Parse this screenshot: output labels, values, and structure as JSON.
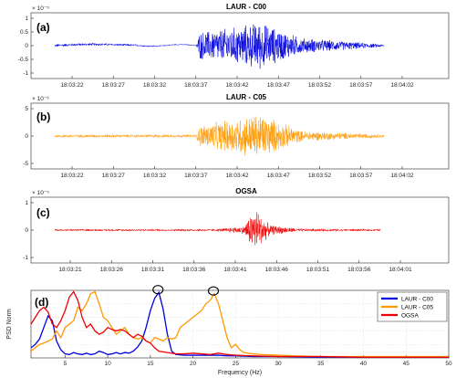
{
  "chart_data": [
    {
      "type": "line",
      "panel_label": "(a)",
      "title": "LAUR - C00",
      "exponent_label": "× 10⁻⁵",
      "color": "#0000dd",
      "ylim": [
        -1,
        1
      ],
      "yticks": [
        "-1",
        "-0.5",
        "0",
        "0.5",
        "1"
      ],
      "x_tick_labels": [
        "18:03:22",
        "18:03:27",
        "18:03:32",
        "18:03:37",
        "18:03:42",
        "18:03:47",
        "18:03:52",
        "18:03:57",
        "18:04:02"
      ],
      "envelope": [
        {
          "t": 0.0,
          "a": 0.06,
          "b": 0.08
        },
        {
          "t": 0.25,
          "a": 0.04,
          "b": 0.02
        },
        {
          "t": 0.35,
          "a": 0.02,
          "b": -0.15
        },
        {
          "t": 0.43,
          "a": 0.02,
          "b": 0.0
        },
        {
          "t": 0.44,
          "a": 0.55,
          "b": 0.0
        },
        {
          "t": 0.56,
          "a": 0.75,
          "b": 0.0
        },
        {
          "t": 0.62,
          "a": 0.95,
          "b": 0.0
        },
        {
          "t": 0.75,
          "a": 0.3,
          "b": 0.0
        },
        {
          "t": 1.0,
          "a": 0.05,
          "b": 0.0
        }
      ]
    },
    {
      "type": "line",
      "panel_label": "(b)",
      "title": "LAUR - C05",
      "exponent_label": "× 10⁻⁶",
      "color": "#ff9900",
      "ylim": [
        -5,
        5
      ],
      "yticks": [
        "-5",
        "0",
        "5"
      ],
      "x_tick_labels": [
        "18:03:22",
        "18:03:27",
        "18:03:32",
        "18:03:37",
        "18:03:42",
        "18:03:47",
        "18:03:52",
        "18:03:57",
        "18:04:02"
      ],
      "envelope": [
        {
          "t": 0.0,
          "a": 0.3,
          "b": 0.0
        },
        {
          "t": 0.43,
          "a": 0.3,
          "b": 0.0
        },
        {
          "t": 0.44,
          "a": 2.0,
          "b": 0.0
        },
        {
          "t": 0.62,
          "a": 4.5,
          "b": 0.0
        },
        {
          "t": 0.75,
          "a": 1.0,
          "b": 0.0
        },
        {
          "t": 1.0,
          "a": 0.3,
          "b": 0.0
        }
      ]
    },
    {
      "type": "line",
      "panel_label": "(c)",
      "title": "OGSA",
      "exponent_label": "× 10⁻⁵",
      "color": "#ee0000",
      "ylim": [
        -1,
        1
      ],
      "yticks": [
        "-1",
        "0",
        "1"
      ],
      "x_tick_labels": [
        "18:03:21",
        "18:03:26",
        "18:03:31",
        "18:03:36",
        "18:03:41",
        "18:03:46",
        "18:03:51",
        "18:03:56",
        "18:04:01"
      ],
      "envelope": [
        {
          "t": 0.0,
          "a": 0.04,
          "b": 0.0
        },
        {
          "t": 0.5,
          "a": 0.05,
          "b": 0.0
        },
        {
          "t": 0.58,
          "a": 0.15,
          "b": 0.0
        },
        {
          "t": 0.615,
          "a": 0.9,
          "b": 0.0
        },
        {
          "t": 0.66,
          "a": 0.2,
          "b": 0.0
        },
        {
          "t": 0.75,
          "a": 0.06,
          "b": 0.0
        },
        {
          "t": 1.0,
          "a": 0.04,
          "b": 0.0
        }
      ]
    },
    {
      "type": "line",
      "panel_label": "(d)",
      "xlabel": "Frequency (Hz)",
      "ylabel": "PSD Norm",
      "xlim": [
        1,
        50
      ],
      "ylim": [
        0,
        1
      ],
      "xticks": [
        5,
        10,
        15,
        20,
        25,
        30,
        35,
        40,
        45,
        50
      ],
      "grid": true,
      "legend_position": "top-right",
      "series": [
        {
          "name": "LAUR - C00",
          "color": "#0000dd",
          "x": [
            1,
            1.5,
            2,
            2.5,
            3,
            3.5,
            4,
            4.5,
            5,
            5.5,
            6,
            6.5,
            7,
            7.5,
            8,
            8.5,
            9,
            9.5,
            10,
            10.5,
            11,
            11.5,
            12,
            12.5,
            13,
            13.5,
            14,
            14.5,
            15,
            15.5,
            16,
            16.5,
            17,
            17.5,
            18,
            19,
            20,
            21,
            22,
            23,
            24,
            25,
            27,
            30,
            35,
            40,
            45,
            50
          ],
          "y": [
            0.15,
            0.2,
            0.28,
            0.45,
            0.62,
            0.55,
            0.25,
            0.12,
            0.06,
            0.05,
            0.08,
            0.06,
            0.05,
            0.07,
            0.05,
            0.06,
            0.1,
            0.08,
            0.05,
            0.06,
            0.08,
            0.06,
            0.08,
            0.07,
            0.1,
            0.16,
            0.25,
            0.45,
            0.7,
            0.88,
            0.97,
            0.72,
            0.35,
            0.1,
            0.05,
            0.04,
            0.04,
            0.04,
            0.04,
            0.04,
            0.03,
            0.03,
            0.02,
            0.02,
            0.01,
            0.01,
            0.01,
            0.01
          ]
        },
        {
          "name": "LAUR - C05",
          "color": "#ff9900",
          "x": [
            1,
            1.5,
            2,
            2.5,
            3,
            3.5,
            4,
            4.5,
            5,
            5.5,
            6,
            6.5,
            7,
            7.5,
            8,
            8.5,
            9,
            9.5,
            10,
            10.5,
            11,
            11.5,
            12,
            12.5,
            13,
            13.5,
            14,
            14.5,
            15,
            15.5,
            16,
            16.5,
            17,
            17.5,
            18,
            18.5,
            19,
            19.5,
            20,
            20.5,
            21,
            21.5,
            22,
            22.5,
            23,
            23.5,
            24,
            24.5,
            25,
            25.5,
            26,
            27,
            28,
            30,
            32,
            35,
            40,
            45,
            50
          ],
          "y": [
            0.1,
            0.15,
            0.2,
            0.22,
            0.25,
            0.28,
            0.4,
            0.3,
            0.45,
            0.5,
            0.55,
            0.75,
            0.7,
            0.8,
            0.95,
            0.98,
            0.8,
            0.6,
            0.55,
            0.45,
            0.35,
            0.4,
            0.45,
            0.35,
            0.3,
            0.28,
            0.3,
            0.25,
            0.22,
            0.3,
            0.28,
            0.25,
            0.3,
            0.28,
            0.3,
            0.45,
            0.5,
            0.55,
            0.6,
            0.65,
            0.7,
            0.8,
            0.85,
            0.95,
            0.8,
            0.55,
            0.3,
            0.15,
            0.2,
            0.12,
            0.08,
            0.06,
            0.05,
            0.04,
            0.03,
            0.02,
            0.02,
            0.02,
            0.02
          ]
        },
        {
          "name": "OGSA",
          "color": "#ee0000",
          "x": [
            1,
            1.5,
            2,
            2.5,
            3,
            3.5,
            4,
            4.5,
            5,
            5.5,
            6,
            6.5,
            7,
            7.5,
            8,
            8.5,
            9,
            9.5,
            10,
            10.5,
            11,
            11.5,
            12,
            12.5,
            13,
            13.5,
            14,
            14.5,
            15,
            15.5,
            16,
            17,
            18,
            19,
            20,
            21,
            22,
            23,
            24,
            25,
            27,
            30,
            35,
            40,
            45,
            50
          ],
          "y": [
            0.5,
            0.6,
            0.7,
            0.75,
            0.68,
            0.5,
            0.45,
            0.55,
            0.7,
            0.9,
            0.98,
            0.85,
            0.6,
            0.45,
            0.5,
            0.4,
            0.35,
            0.38,
            0.45,
            0.42,
            0.4,
            0.42,
            0.4,
            0.35,
            0.3,
            0.35,
            0.32,
            0.25,
            0.22,
            0.15,
            0.1,
            0.08,
            0.06,
            0.06,
            0.07,
            0.06,
            0.05,
            0.07,
            0.05,
            0.04,
            0.03,
            0.02,
            0.02,
            0.01,
            0.01,
            0.01
          ]
        }
      ],
      "annotations": [
        {
          "type": "circle",
          "x": 15.9,
          "y": 0.97
        },
        {
          "type": "circle",
          "x": 22.4,
          "y": 0.95
        }
      ]
    }
  ]
}
